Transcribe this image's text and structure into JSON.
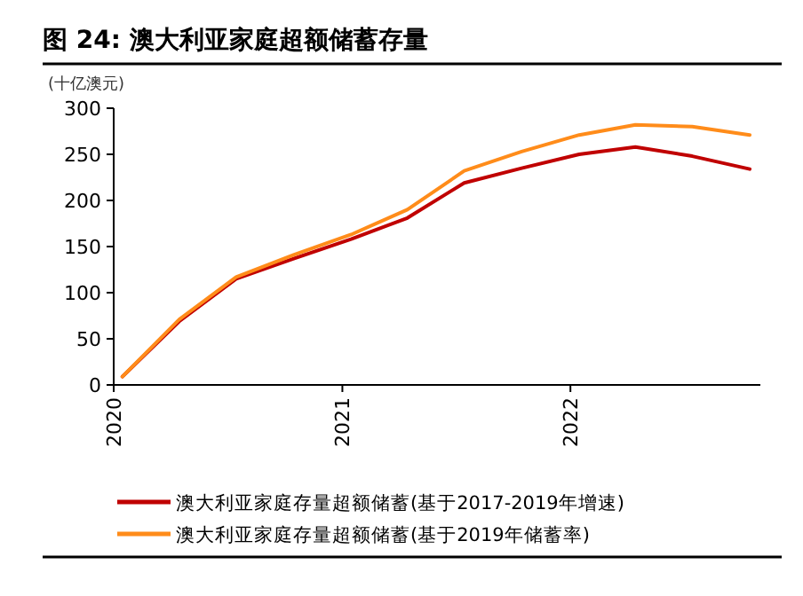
{
  "chart_data": {
    "type": "line",
    "title": "图 24: 澳大利亚家庭超额储蓄存量",
    "ylabel": "(十亿澳元)",
    "x": [
      "2020-01-15",
      "2020-04-15",
      "2020-07-15",
      "2020-10-15",
      "2021-01-15",
      "2021-04-15",
      "2021-07-15",
      "2021-10-15",
      "2022-01-15",
      "2022-04-15",
      "2022-07-15",
      "2022-10-15"
    ],
    "xlim": [
      "2020-01-01",
      "2022-11-01"
    ],
    "xticks": [
      "2020",
      "2021",
      "2022"
    ],
    "ylim": [
      0,
      300
    ],
    "yticks": [
      0,
      50,
      100,
      150,
      200,
      250,
      300
    ],
    "series": [
      {
        "name": "澳大利亚家庭存量超额储蓄(基于2017-2019年增速)",
        "color": "#c00000",
        "values": [
          9,
          69,
          115,
          137,
          158,
          181,
          219,
          235,
          250,
          258,
          248,
          234
        ]
      },
      {
        "name": "澳大利亚家庭存量超额储蓄(基于2019年储蓄率)",
        "color": "#ff8c1a",
        "values": [
          9,
          71,
          117,
          141,
          163,
          190,
          232,
          253,
          271,
          282,
          280,
          271
        ]
      }
    ],
    "legend": "bottom",
    "grid": false,
    "marker": "none",
    "line_style": "solid"
  }
}
